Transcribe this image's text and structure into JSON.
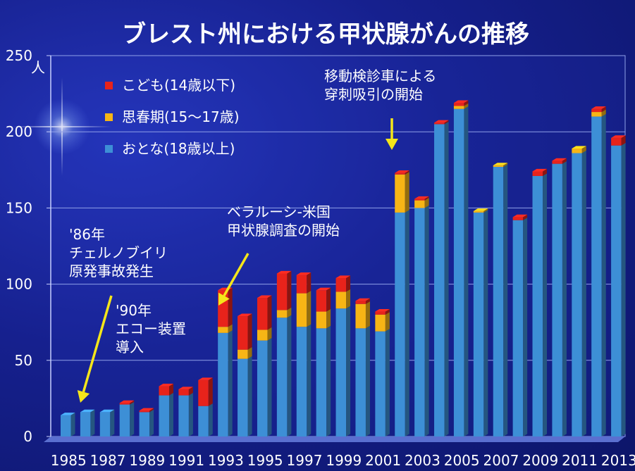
{
  "chart_data": {
    "type": "bar",
    "stacked": true,
    "title": "ブレスト州における甲状腺がんの推移",
    "ylabel_unit": "人",
    "ylim": [
      0,
      250
    ],
    "yticks": [
      0,
      50,
      100,
      150,
      200,
      250
    ],
    "years": [
      1985,
      1986,
      1987,
      1988,
      1989,
      1990,
      1991,
      1992,
      1993,
      1994,
      1995,
      1996,
      1997,
      1998,
      1999,
      2000,
      2001,
      2002,
      2003,
      2004,
      2005,
      2006,
      2007,
      2008,
      2009,
      2010,
      2011,
      2012,
      2013
    ],
    "xtick_labels": [
      "1985",
      "1987",
      "1989",
      "1991",
      "1993",
      "1995",
      "1997",
      "1999",
      "2001",
      "2003",
      "2005",
      "2007",
      "2009",
      "2011",
      "2013"
    ],
    "series": [
      {
        "name": "おとな(18歳以上)",
        "color": "#3d8fd6",
        "values": [
          14,
          16,
          16,
          21,
          16,
          27,
          27,
          20,
          68,
          51,
          63,
          78,
          72,
          71,
          84,
          71,
          69,
          147,
          150,
          205,
          215,
          147,
          177,
          142,
          171,
          179,
          186,
          210,
          191
        ]
      },
      {
        "name": "思春期(15～17歳)",
        "color": "#f7b515",
        "values": [
          0,
          0,
          0,
          0,
          0,
          0,
          0,
          0,
          4,
          6,
          7,
          5,
          22,
          11,
          11,
          16,
          11,
          25,
          5,
          0,
          2,
          1,
          1,
          0,
          0,
          0,
          3,
          3,
          0
        ]
      },
      {
        "name": "こども(14歳以下)",
        "color": "#e8231b",
        "values": [
          0,
          0,
          0,
          1,
          1,
          6,
          4,
          17,
          24,
          22,
          21,
          24,
          12,
          14,
          9,
          2,
          2,
          1,
          1,
          1,
          2,
          0,
          0,
          2,
          3,
          2,
          0,
          2,
          5
        ]
      }
    ],
    "legend_order": [
      "こども(14歳以下)",
      "思春期(15～17歳)",
      "おとな(18歳以上)"
    ],
    "legend_position": "top-left",
    "annotations": [
      {
        "lines": [
          "'86年",
          "チェルノブイリ",
          "原発事故発生"
        ],
        "year": 1986
      },
      {
        "lines": [
          "'90年",
          "エコー装置",
          "導入"
        ],
        "year": 1990
      },
      {
        "lines": [
          "ベラルーシ-米国",
          "甲状腺調査の開始"
        ],
        "year": 1993
      },
      {
        "lines": [
          "移動検診車による",
          "穿刺吸引の開始"
        ],
        "year": 2002
      }
    ]
  }
}
